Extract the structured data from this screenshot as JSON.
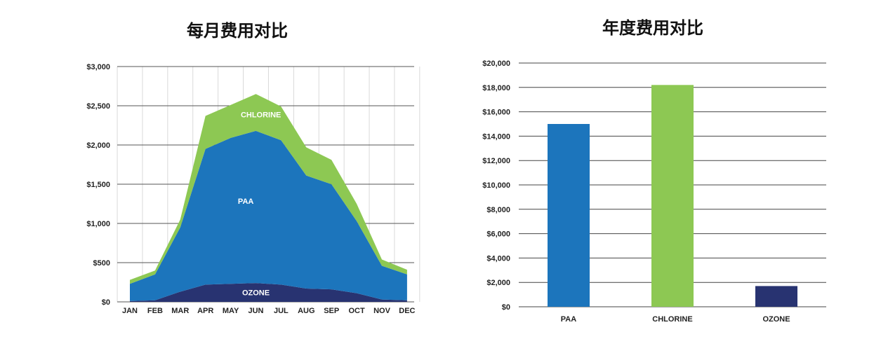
{
  "charts": {
    "monthly": {
      "title": "每月费用对比"
    },
    "annual": {
      "title": "年度费用对比"
    }
  },
  "chart_data": [
    {
      "type": "area",
      "stacked": true,
      "title": "每月费用对比",
      "categories": [
        "JAN",
        "FEB",
        "MAR",
        "APR",
        "MAY",
        "JUN",
        "JUL",
        "AUG",
        "SEP",
        "OCT",
        "NOV",
        "DEC"
      ],
      "yticks": [
        "$0",
        "$500",
        "$1,000",
        "$1,500",
        "$2,000",
        "$2,500",
        "$3,000"
      ],
      "ylim": [
        0,
        3000
      ],
      "grid": "horizontal and vertical",
      "series": [
        {
          "name": "OZONE",
          "color": "#283371",
          "values": [
            10,
            20,
            130,
            220,
            230,
            240,
            220,
            170,
            160,
            110,
            30,
            20
          ]
        },
        {
          "name": "PAA",
          "color": "#1c75bc",
          "values": [
            220,
            330,
            820,
            1730,
            1860,
            1940,
            1840,
            1440,
            1340,
            920,
            430,
            330
          ]
        },
        {
          "name": "CHLORINE",
          "color": "#8dc853",
          "values": [
            50,
            50,
            100,
            420,
            420,
            470,
            430,
            360,
            310,
            220,
            80,
            60
          ]
        }
      ]
    },
    {
      "type": "bar",
      "title": "年度费用对比",
      "categories": [
        "PAA",
        "CHLORINE",
        "OZONE"
      ],
      "values": [
        15000,
        18200,
        1700
      ],
      "colors": [
        "#1c75bc",
        "#8dc853",
        "#283371"
      ],
      "yticks": [
        "$0",
        "$2,000",
        "$4,000",
        "$6,000",
        "$8,000",
        "$10,000",
        "$12,000",
        "$14,000",
        "$16,000",
        "$18,000",
        "$20,000"
      ],
      "ylim": [
        0,
        20000
      ],
      "grid": "horizontal"
    }
  ]
}
